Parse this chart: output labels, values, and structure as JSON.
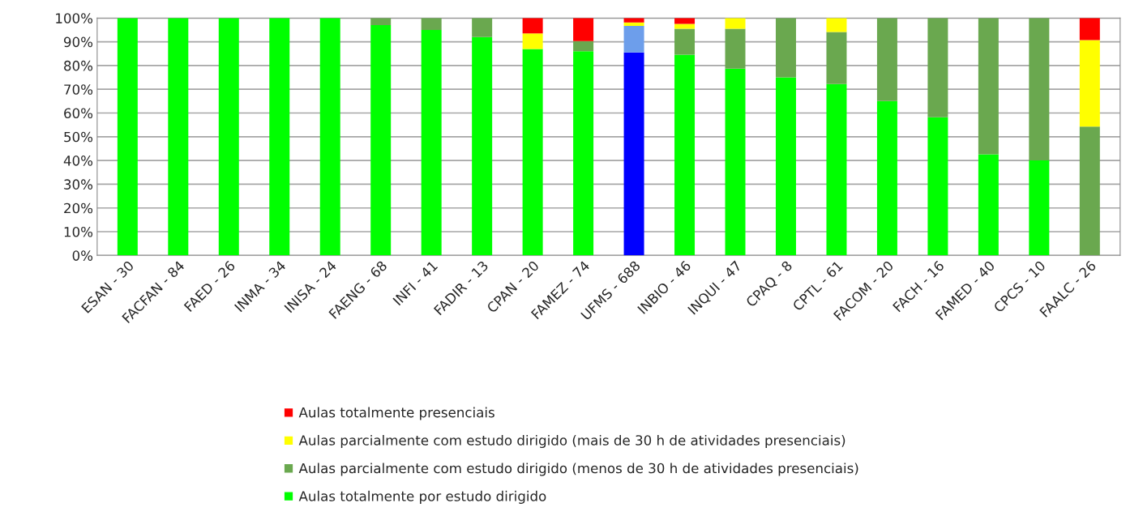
{
  "chart_data": {
    "type": "bar",
    "stacked": true,
    "categories": [
      "ESAN - 30",
      "FACFAN - 84",
      "FAED - 26",
      "INMA - 34",
      "INISA - 24",
      "FAENG - 68",
      "INFI - 41",
      "FADIR - 13",
      "CPAN - 20",
      "FAMEZ - 74",
      "UFMS - 688",
      "INBIO - 46",
      "INQUI - 47",
      "CPAQ - 8",
      "CPTL - 61",
      "FACOM - 20",
      "FACH - 16",
      "FAMED - 40",
      "CPCS - 10",
      "FAALC - 26"
    ],
    "series": [
      {
        "name": "Aulas totalmente por estudo dirigido",
        "color": "#00ff00",
        "colors": [
          "#00ff00",
          "#00ff00",
          "#00ff00",
          "#00ff00",
          "#00ff00",
          "#00ff00",
          "#00ff00",
          "#00ff00",
          "#00ff00",
          "#00ff00",
          "#0000ff",
          "#00ff00",
          "#00ff00",
          "#00ff00",
          "#00ff00",
          "#00ff00",
          "#00ff00",
          "#00ff00",
          "#00ff00",
          "#00ff00"
        ],
        "values": [
          100,
          100,
          100,
          100,
          100,
          97,
          95,
          92,
          87,
          86,
          85.5,
          84.6,
          78.7,
          75,
          72.2,
          65,
          58.2,
          42.6,
          40,
          0
        ]
      },
      {
        "name": "Aulas parcialmente com estudo dirigido (menos de 30 h de atividades presenciais)",
        "color": "#6aa84f",
        "colors": [
          "#6aa84f",
          "#6aa84f",
          "#6aa84f",
          "#6aa84f",
          "#6aa84f",
          "#6aa84f",
          "#6aa84f",
          "#6aa84f",
          "#6aa84f",
          "#6aa84f",
          "#6d9eeb",
          "#6aa84f",
          "#6aa84f",
          "#6aa84f",
          "#6aa84f",
          "#6aa84f",
          "#6aa84f",
          "#6aa84f",
          "#6aa84f",
          "#6aa84f"
        ],
        "values": [
          0,
          0,
          0,
          0,
          0,
          3,
          5,
          8,
          0,
          4.3,
          11.2,
          10.9,
          16.8,
          25,
          21.9,
          35,
          41.8,
          57.4,
          60,
          54.3
        ]
      },
      {
        "name": "Aulas parcialmente com estudo dirigido (mais de 30 h de atividades presenciais)",
        "color": "#ffff00",
        "values": [
          0,
          0,
          0,
          0,
          0,
          0,
          0,
          0,
          6.5,
          0,
          1.4,
          2,
          4.5,
          0,
          5.9,
          0,
          0,
          0,
          0,
          36.4
        ]
      },
      {
        "name": "Aulas totalmente presenciais",
        "color": "#ff0000",
        "values": [
          0,
          0,
          0,
          0,
          0,
          0,
          0,
          0,
          6.5,
          9.7,
          1.9,
          2.5,
          0,
          0,
          0,
          0,
          0,
          0,
          0,
          9.3
        ]
      }
    ],
    "ylim": [
      0,
      100
    ],
    "yticks": [
      {
        "value": 0,
        "label": "0%"
      },
      {
        "value": 10,
        "label": "10%"
      },
      {
        "value": 20,
        "label": "20%"
      },
      {
        "value": 30,
        "label": "30%"
      },
      {
        "value": 40,
        "label": "40%"
      },
      {
        "value": 50,
        "label": "50%"
      },
      {
        "value": 60,
        "label": "60%"
      },
      {
        "value": 70,
        "label": "70%"
      },
      {
        "value": 80,
        "label": "80%"
      },
      {
        "value": 90,
        "label": "90%"
      },
      {
        "value": 100,
        "label": "100%"
      }
    ],
    "grid": "y",
    "legend": "bottom"
  }
}
